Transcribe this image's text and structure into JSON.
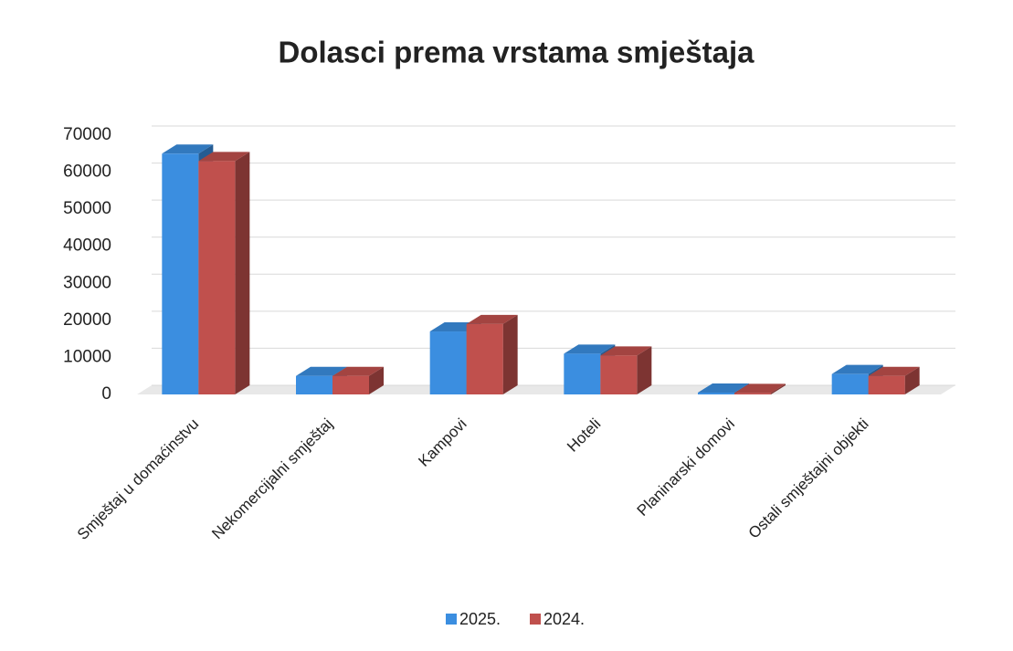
{
  "chart_data": {
    "type": "bar3d",
    "title": "Dolasci prema vrstama smještaja",
    "categories": [
      "Smještaj u domaćinstvu",
      "Nekomercijalni smještaj",
      "Kampovi",
      "Hoteli",
      "Planinarski domovi",
      "Ostali smještajni objekti"
    ],
    "series": [
      {
        "name": "2025.",
        "color": "#3b8ee0",
        "values": [
          65000,
          5000,
          17000,
          11000,
          500,
          5500
        ]
      },
      {
        "name": "2024.",
        "color": "#c0504d",
        "values": [
          63000,
          5000,
          19000,
          10500,
          400,
          5000
        ]
      }
    ],
    "ylim": [
      0,
      70000
    ],
    "yticks": [
      0,
      10000,
      20000,
      30000,
      40000,
      50000,
      60000,
      70000
    ],
    "grid": true,
    "legend": "bottom"
  }
}
